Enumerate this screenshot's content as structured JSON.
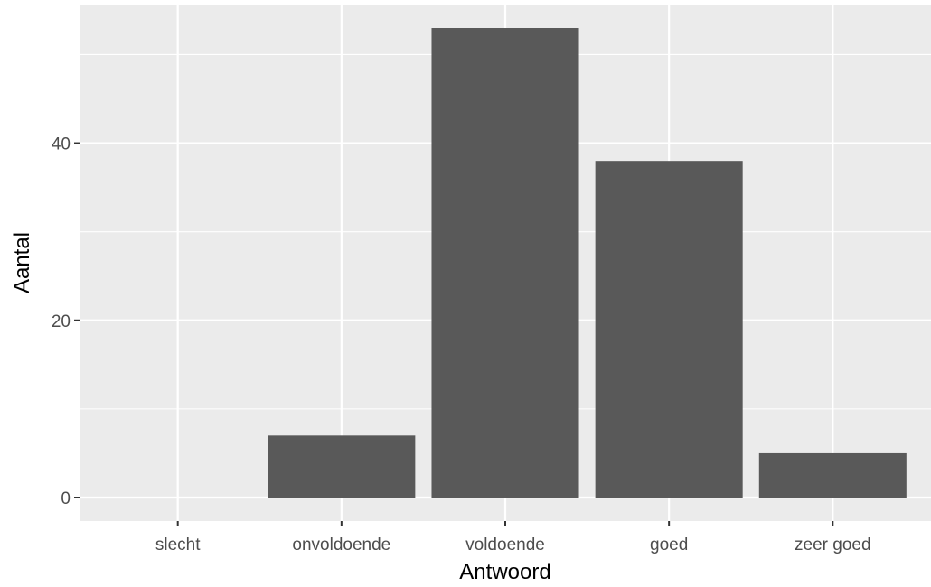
{
  "chart_data": {
    "type": "bar",
    "categories": [
      "slecht",
      "onvoldoende",
      "voldoende",
      "goed",
      "zeer goed"
    ],
    "values": [
      0,
      7,
      53,
      38,
      5
    ],
    "xlabel": "Antwoord",
    "ylabel": "Aantal",
    "ylim": [
      -2.65,
      55.65
    ],
    "yticks": [
      0,
      20,
      40
    ],
    "grid": true,
    "colors": {
      "panel": "#ebebeb",
      "grid_major": "#ffffff",
      "bar": "#595959",
      "tick": "#333333",
      "tick_label": "#4d4d4d"
    }
  }
}
